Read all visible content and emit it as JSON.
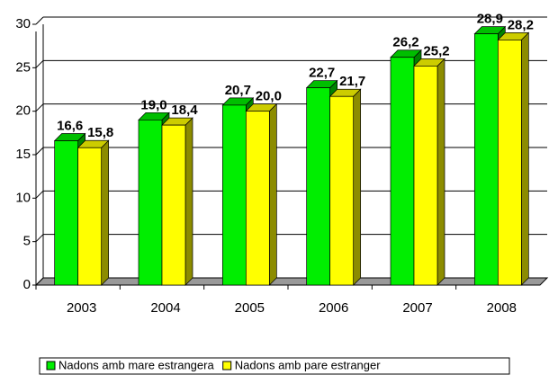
{
  "chart_data": {
    "type": "bar3d",
    "categories": [
      "2003",
      "2004",
      "2005",
      "2006",
      "2007",
      "2008"
    ],
    "series": [
      {
        "name": "Nadons amb mare estrangera",
        "color": "#00ee00",
        "values": [
          16.6,
          19.0,
          20.7,
          22.7,
          26.2,
          28.9
        ],
        "value_labels": [
          "16,6",
          "19,0",
          "20,7",
          "22,7",
          "26,2",
          "28,9"
        ]
      },
      {
        "name": "Nadons amb pare estranger",
        "color": "#ffff00",
        "values": [
          15.8,
          18.4,
          20.0,
          21.7,
          25.2,
          28.2
        ],
        "value_labels": [
          "15,8",
          "18,4",
          "20,0",
          "21,7",
          "25,2",
          "28,2"
        ]
      }
    ],
    "ylim": [
      0,
      30
    ],
    "yticks": [
      0,
      5,
      10,
      15,
      20,
      25,
      30
    ],
    "grid": true,
    "legend": "bottom"
  }
}
